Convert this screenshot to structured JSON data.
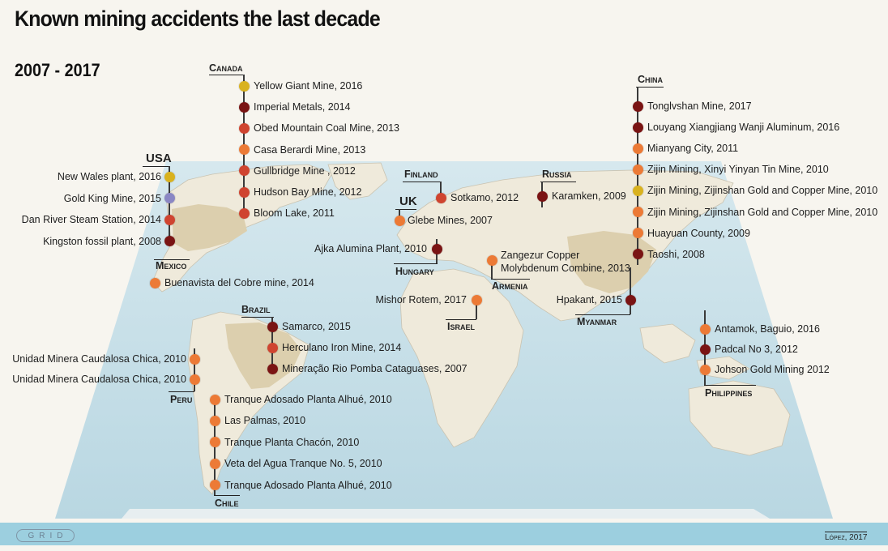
{
  "title": "Known mining accidents the last decade",
  "subtitle": "2007 - 2017",
  "colors": {
    "ocean": "#c7dfe8",
    "land": "#efeadb",
    "land_highlight": "#d8ccac",
    "dot_yellow": "#d9b21f",
    "dot_purple": "#8a87c4",
    "dot_red": "#cf4430",
    "dot_orange": "#ec7a36",
    "dot_darkred": "#7a1414"
  },
  "groups": {
    "canada": {
      "country": "Canada",
      "items": [
        {
          "label": "Yellow Giant Mine, 2016",
          "color": "#d9b21f"
        },
        {
          "label": "Imperial Metals, 2014",
          "color": "#7a1414"
        },
        {
          "label": "Obed Mountain Coal Mine, 2013",
          "color": "#cf4430"
        },
        {
          "label": "Casa Berardi Mine, 2013",
          "color": "#ec7a36"
        },
        {
          "label": "Gullbridge Mine , 2012",
          "color": "#cf4430"
        },
        {
          "label": "Hudson Bay Mine, 2012",
          "color": "#cf4430"
        },
        {
          "label": "Bloom Lake, 2011",
          "color": "#cf4430"
        }
      ]
    },
    "usa": {
      "country": "USA",
      "items": [
        {
          "label": "New Wales plant, 2016",
          "color": "#d9b21f"
        },
        {
          "label": "Gold King Mine, 2015",
          "color": "#8a87c4"
        },
        {
          "label": "Dan River Steam Station, 2014",
          "color": "#cf4430"
        },
        {
          "label": "Kingston fossil plant, 2008",
          "color": "#7a1414"
        }
      ]
    },
    "mexico": {
      "country": "Mexico",
      "items": [
        {
          "label": "Buenavista del Cobre mine, 2014",
          "color": "#ec7a36"
        }
      ]
    },
    "brazil": {
      "country": "Brazil",
      "items": [
        {
          "label": "Samarco, 2015",
          "color": "#7a1414"
        },
        {
          "label": "Herculano Iron Mine, 2014",
          "color": "#cf4430"
        },
        {
          "label": "Mineração Rio Pomba Cataguases, 2007",
          "color": "#7a1414"
        }
      ]
    },
    "peru": {
      "country": "Peru",
      "items": [
        {
          "label": "Unidad Minera Caudalosa Chica, 2010",
          "color": "#ec7a36"
        },
        {
          "label": "Unidad Minera Caudalosa Chica, 2010",
          "color": "#ec7a36"
        }
      ]
    },
    "chile": {
      "country": "Chile",
      "items": [
        {
          "label": "Tranque Adosado Planta Alhué, 2010",
          "color": "#ec7a36"
        },
        {
          "label": "Las Palmas, 2010",
          "color": "#ec7a36"
        },
        {
          "label": "Tranque Planta Chacón, 2010",
          "color": "#ec7a36"
        },
        {
          "label": "Veta del Agua Tranque No. 5, 2010",
          "color": "#ec7a36"
        },
        {
          "label": "Tranque Adosado Planta Alhué, 2010",
          "color": "#ec7a36"
        }
      ]
    },
    "finland": {
      "country": "Finland",
      "items": [
        {
          "label": "Sotkamo, 2012",
          "color": "#cf4430"
        }
      ]
    },
    "uk": {
      "country": "UK",
      "items": [
        {
          "label": "Glebe Mines, 2007",
          "color": "#ec7a36"
        }
      ]
    },
    "hungary": {
      "country": "Hungary",
      "items": [
        {
          "label": "Ajka Alumina Plant, 2010",
          "color": "#7a1414"
        }
      ]
    },
    "russia": {
      "country": "Russia",
      "items": [
        {
          "label": "Karamken, 2009",
          "color": "#7a1414"
        }
      ]
    },
    "armenia": {
      "country": "Armenia",
      "items": [
        {
          "label_line1": "Zangezur Copper",
          "label_line2": "Molybdenum Combine, 2013",
          "color": "#ec7a36"
        }
      ]
    },
    "israel": {
      "country": "Israel",
      "items": [
        {
          "label": "Mishor Rotem, 2017",
          "color": "#ec7a36"
        }
      ]
    },
    "myanmar": {
      "country": "Myanmar",
      "items": [
        {
          "label": "Hpakant, 2015",
          "color": "#7a1414"
        }
      ]
    },
    "china": {
      "country": "China",
      "items": [
        {
          "label": "Tonglvshan Mine, 2017",
          "color": "#7a1414"
        },
        {
          "label": "Louyang Xiangjiang Wanji Aluminum, 2016",
          "color": "#7a1414"
        },
        {
          "label": "Mianyang City, 2011",
          "color": "#ec7a36"
        },
        {
          "label": "Zijin Mining, Xinyi Yinyan Tin Mine, 2010",
          "color": "#ec7a36"
        },
        {
          "label": "Zijin Mining, Zijinshan Gold and Copper Mine, 2010",
          "color": "#d9b21f"
        },
        {
          "label": "Zijin Mining, Zijinshan Gold and Copper Mine, 2010",
          "color": "#ec7a36"
        },
        {
          "label": "Huayuan County, 2009",
          "color": "#ec7a36"
        },
        {
          "label": "Taoshi, 2008",
          "color": "#7a1414"
        }
      ]
    },
    "philippines": {
      "country": "Philippines",
      "items": [
        {
          "label": "Antamok, Baguio, 2016",
          "color": "#ec7a36"
        },
        {
          "label": "Padcal No 3, 2012",
          "color": "#7a1414"
        },
        {
          "label": "Johson Gold Mining  2012",
          "color": "#ec7a36"
        }
      ]
    }
  },
  "footer": {
    "logo": "GRID",
    "credit": "López, 2017"
  }
}
